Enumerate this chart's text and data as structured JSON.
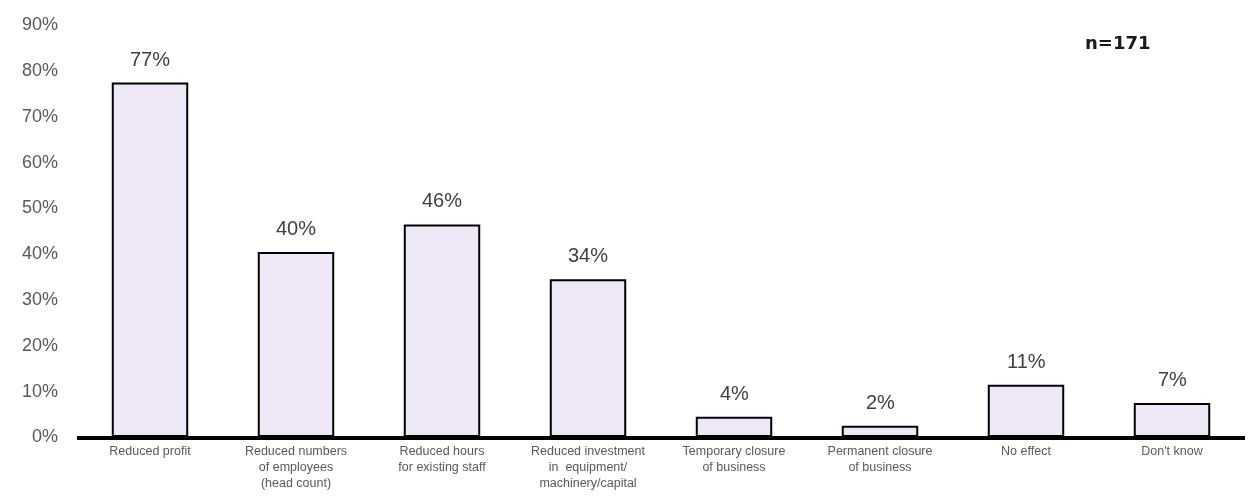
{
  "chart_data": {
    "type": "bar",
    "categories": [
      "Reduced profit",
      "Reduced numbers\nof employees\n(head count)",
      "Reduced hours\nfor existing staff",
      "Reduced investment\nin  equipment/\nmachinery/capital",
      "Temporary closure\nof business",
      "Permanent closure\nof business",
      "No effect",
      "Don't know"
    ],
    "values": [
      77,
      40,
      46,
      34,
      4,
      2,
      11,
      7
    ],
    "value_labels": [
      "77%",
      "40%",
      "46%",
      "34%",
      "4%",
      "2%",
      "11%",
      "7%"
    ],
    "color": "#ede7f6",
    "ylim": [
      0,
      90
    ],
    "yticks": [
      {
        "value": 0,
        "label": "0%"
      },
      {
        "value": 10,
        "label": "10%"
      },
      {
        "value": 20,
        "label": "20%"
      },
      {
        "value": 30,
        "label": "30%"
      },
      {
        "value": 40,
        "label": "40%"
      },
      {
        "value": 50,
        "label": "50%"
      },
      {
        "value": 60,
        "label": "60%"
      },
      {
        "value": 70,
        "label": "70%"
      },
      {
        "value": 80,
        "label": "80%"
      },
      {
        "value": 90,
        "label": "90%"
      }
    ],
    "annotations": [
      "n=171"
    ]
  }
}
